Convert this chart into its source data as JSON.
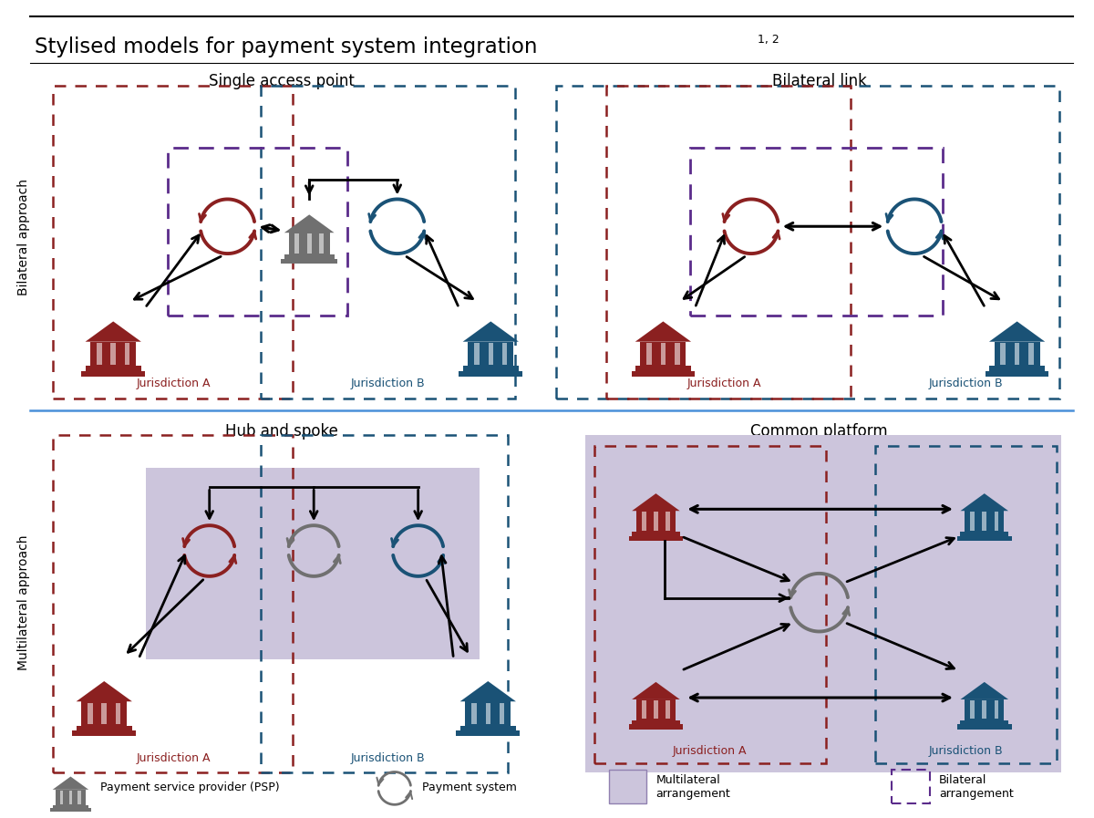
{
  "title": "Stylised models for payment system integration",
  "title_superscript": "1, 2",
  "background_color": "#ffffff",
  "panel_titles": [
    "Single access point",
    "Bilateral link",
    "Hub and spoke",
    "Common platform"
  ],
  "row_labels": [
    "Bilateral approach",
    "Multilateral approach"
  ],
  "jurisdiction_a_color": "#8B2020",
  "jurisdiction_b_color": "#1a5276",
  "jurisdiction_a_label": "Jurisdiction A",
  "jurisdiction_b_label": "Jurisdiction B",
  "multilateral_bg_color": "#ccc5dc",
  "bilateral_border_color": "#5b2c8b",
  "red_dashed_color": "#8B2020",
  "blue_dashed_color": "#1a5276",
  "arrow_color": "#000000",
  "gray_color": "#707070",
  "legend_psp_label": "Payment service provider (PSP)",
  "legend_ps_label": "Payment system",
  "legend_multi_label": "Multilateral\narrangement",
  "legend_bi_label": "Bilateral\narrangement",
  "separator_line_color": "#4a90d9",
  "top_line_color": "#000000"
}
